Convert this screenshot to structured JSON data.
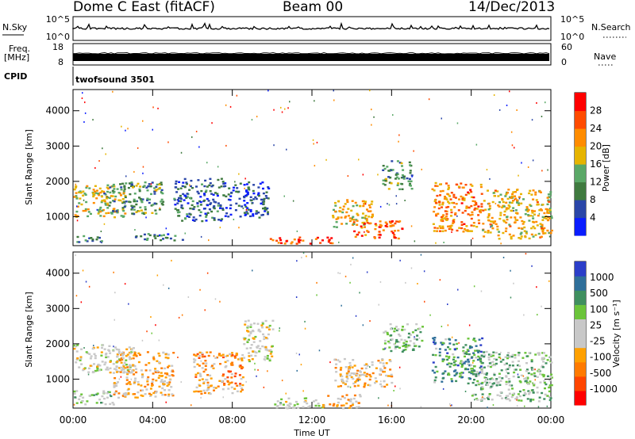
{
  "header": {
    "station": "Dome C East (fitACF)",
    "beam": "Beam 00",
    "date": "14/Dec/2013"
  },
  "top_panels": {
    "nsky_label": "N.Sky",
    "nsky_ticks": [
      "10^5",
      "10^0"
    ],
    "nsearch_label": "N.Search",
    "nsearch_ticks": [
      "10^5",
      "10^0"
    ],
    "freq_label_1": "Freq.",
    "freq_label_2": "[MHz]",
    "freq_ticks": [
      "18",
      "8"
    ],
    "nave_label": "Nave",
    "nave_ticks": [
      "60",
      "0"
    ],
    "cpid_label": "CPID",
    "cpid_text": "twofsound 3501"
  },
  "colors": {
    "power_scale": [
      "#0a1dff",
      "#2a46a8",
      "#3f7a3f",
      "#5aa867",
      "#e6b400",
      "#ff8c00",
      "#ff4b00",
      "#ff0000"
    ],
    "velocity_scale": [
      "#2b3ec9",
      "#2f6f9a",
      "#3f8f5f",
      "#6bc43a",
      "#c8c8c8",
      "#c8c8c8",
      "#ffa000",
      "#ff7a00",
      "#ff4500",
      "#ff0000"
    ]
  },
  "chart_data": [
    {
      "type": "heatmap",
      "title": "Power",
      "ylabel": "Slant Range [km]",
      "xlabel": "",
      "x_ticks": [
        "00:00",
        "04:00",
        "08:00",
        "12:00",
        "16:00",
        "20:00",
        "00:00"
      ],
      "y_ticks": [
        "1000",
        "2000",
        "3000",
        "4000"
      ],
      "xlim_hours": [
        0,
        24
      ],
      "ylim_km": [
        180,
        4600
      ],
      "colorbar_label": "Power [dB]",
      "colorbar_ticks": [
        "4",
        "8",
        "12",
        "16",
        "20",
        "24",
        "28"
      ],
      "colorbar_range": [
        0,
        32
      ],
      "patches": [
        {
          "t0": 0.0,
          "t1": 2.6,
          "r0": 1000,
          "r1": 1900,
          "v": 18
        },
        {
          "t0": 0.0,
          "t1": 1.5,
          "r0": 300,
          "r1": 500,
          "v": 10
        },
        {
          "t0": 1.5,
          "t1": 4.5,
          "r0": 1100,
          "r1": 2000,
          "v": 12
        },
        {
          "t0": 3.0,
          "t1": 5.5,
          "r0": 350,
          "r1": 550,
          "v": 9
        },
        {
          "t0": 5.0,
          "t1": 7.5,
          "r0": 900,
          "r1": 2100,
          "v": 8
        },
        {
          "t0": 7.5,
          "t1": 9.8,
          "r0": 1000,
          "r1": 2000,
          "v": 6
        },
        {
          "t0": 9.8,
          "t1": 13.0,
          "r0": 250,
          "r1": 450,
          "v": 26
        },
        {
          "t0": 13.0,
          "t1": 15.0,
          "r0": 700,
          "r1": 1500,
          "v": 18
        },
        {
          "t0": 14.0,
          "t1": 16.5,
          "r0": 400,
          "r1": 900,
          "v": 25
        },
        {
          "t0": 15.5,
          "t1": 17.0,
          "r0": 1800,
          "r1": 2600,
          "v": 12
        },
        {
          "t0": 18.0,
          "t1": 20.5,
          "r0": 600,
          "r1": 2000,
          "v": 23
        },
        {
          "t0": 20.5,
          "t1": 24.0,
          "r0": 400,
          "r1": 1800,
          "v": 19
        }
      ]
    },
    {
      "type": "heatmap",
      "title": "Velocity",
      "ylabel": "Slant Range [km]",
      "xlabel": "Time UT",
      "x_ticks": [
        "00:00",
        "04:00",
        "08:00",
        "12:00",
        "16:00",
        "20:00",
        "00:00"
      ],
      "y_ticks": [
        "1000",
        "2000",
        "3000",
        "4000"
      ],
      "xlim_hours": [
        0,
        24
      ],
      "ylim_km": [
        180,
        4600
      ],
      "colorbar_label": "Velocity [m s⁻¹]",
      "colorbar_ticks": [
        "1000",
        "500",
        "100",
        "25",
        "-25",
        "-100",
        "-500",
        "-1000"
      ],
      "colorbar_range": [
        -1200,
        1200
      ],
      "patches": [
        {
          "t0": 0.0,
          "t1": 3.0,
          "r0": 1200,
          "r1": 2000,
          "v": 0
        },
        {
          "t0": 0.0,
          "t1": 2.0,
          "r0": 300,
          "r1": 700,
          "v": 200
        },
        {
          "t0": 2.0,
          "t1": 5.0,
          "r0": 500,
          "r1": 1800,
          "v": -300
        },
        {
          "t0": 6.0,
          "t1": 8.5,
          "r0": 600,
          "r1": 1800,
          "v": -400
        },
        {
          "t0": 8.5,
          "t1": 10.0,
          "r0": 1500,
          "r1": 2700,
          "v": 0
        },
        {
          "t0": 10.0,
          "t1": 12.5,
          "r0": 200,
          "r1": 500,
          "v": 150
        },
        {
          "t0": 12.5,
          "t1": 14.5,
          "r0": 200,
          "r1": 600,
          "v": -300
        },
        {
          "t0": 13.0,
          "t1": 16.0,
          "r0": 800,
          "r1": 1600,
          "v": -200
        },
        {
          "t0": 15.5,
          "t1": 17.5,
          "r0": 1800,
          "r1": 2600,
          "v": 300
        },
        {
          "t0": 18.0,
          "t1": 20.5,
          "r0": 900,
          "r1": 2200,
          "v": 600
        },
        {
          "t0": 20.0,
          "t1": 24.0,
          "r0": 400,
          "r1": 1800,
          "v": 300
        }
      ]
    }
  ]
}
